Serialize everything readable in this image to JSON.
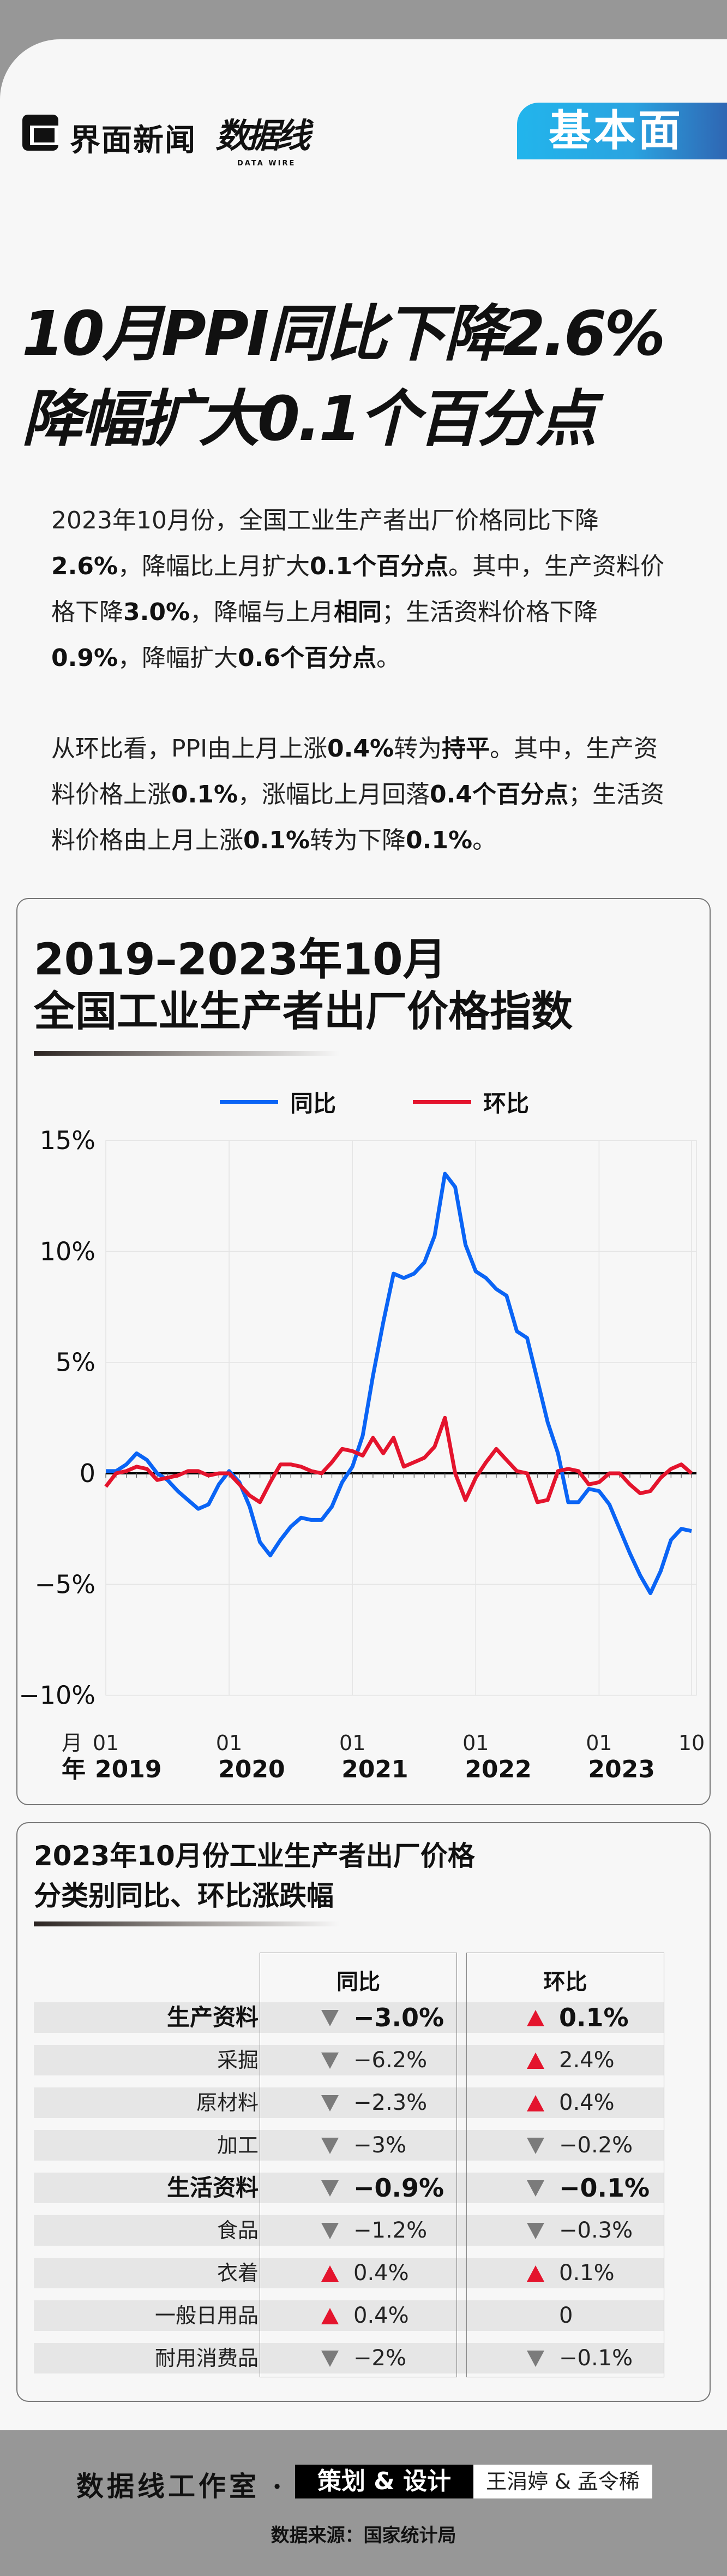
{
  "header": {
    "brand": "界面新闻",
    "sub_brand": "数据线",
    "sub_brand_en": "DATA WIRE",
    "tag": "基本面",
    "tag_colors": [
      "#22b5ec",
      "#2f66b3"
    ]
  },
  "headline": {
    "line1": "10月PPI同比下降2.6%",
    "line2": "降幅扩大0.1个百分点"
  },
  "paragraphs": [
    [
      {
        "t": "2023年10月份，全国工业生产者出厂价格同比下降",
        "b": false
      },
      {
        "t": "2.6%",
        "b": true
      },
      {
        "t": "，降幅比上月扩大",
        "b": false
      },
      {
        "t": "0.1个百分点",
        "b": true
      },
      {
        "t": "。其中，生产资料价格下降",
        "b": false
      },
      {
        "t": "3.0%",
        "b": true
      },
      {
        "t": "，降幅与上月",
        "b": false
      },
      {
        "t": "相同",
        "b": true
      },
      {
        "t": "；生活资料价格下降",
        "b": false
      },
      {
        "t": "0.9%",
        "b": true
      },
      {
        "t": "，降幅扩大",
        "b": false
      },
      {
        "t": "0.6个百分点",
        "b": true
      },
      {
        "t": "。",
        "b": false
      }
    ],
    [
      {
        "t": "从环比看，PPI由上月上涨",
        "b": false
      },
      {
        "t": "0.4%",
        "b": true
      },
      {
        "t": "转为",
        "b": false
      },
      {
        "t": "持平",
        "b": true
      },
      {
        "t": "。其中，生产资料价格上涨",
        "b": false
      },
      {
        "t": "0.1%",
        "b": true
      },
      {
        "t": "，涨幅比上月回落",
        "b": false
      },
      {
        "t": "0.4个百分点",
        "b": true
      },
      {
        "t": "；生活资料价格由上月上涨",
        "b": false
      },
      {
        "t": "0.1%",
        "b": true
      },
      {
        "t": "转为下降",
        "b": false
      },
      {
        "t": "0.1%",
        "b": true
      },
      {
        "t": "。",
        "b": false
      }
    ]
  ],
  "chart_data": {
    "type": "line",
    "title_line1": "2019–2023年10月",
    "title_line2": "全国工业生产者出厂价格指数",
    "x_start": "2019-01",
    "x_end": "2023-10",
    "x_month_label": "月",
    "x_year_label": "年",
    "x_ticks": [
      {
        "month": "01",
        "year": "2019",
        "date": "2019-01"
      },
      {
        "month": "01",
        "year": "2020",
        "date": "2020-01"
      },
      {
        "month": "01",
        "year": "2021",
        "date": "2021-01"
      },
      {
        "month": "01",
        "year": "2022",
        "date": "2022-01"
      },
      {
        "month": "01",
        "year": "2023",
        "date": "2023-01"
      },
      {
        "month": "10",
        "year": "",
        "date": "2023-10"
      }
    ],
    "ylim": [
      -12,
      15
    ],
    "y_ticks": [
      15,
      10,
      5,
      0,
      -5,
      -10
    ],
    "y_tick_labels": [
      "15%",
      "10%",
      "5%",
      "0",
      "−5%",
      "−10%"
    ],
    "grid": true,
    "legend_position": "top-center",
    "series": [
      {
        "name": "同比",
        "color": "#0a64f5",
        "values": [
          0.1,
          0.1,
          0.4,
          0.9,
          0.6,
          0.0,
          -0.3,
          -0.8,
          -1.2,
          -1.6,
          -1.4,
          -0.5,
          0.1,
          -0.4,
          -1.5,
          -3.1,
          -3.7,
          -3.0,
          -2.4,
          -2.0,
          -2.1,
          -2.1,
          -1.5,
          -0.4,
          0.3,
          1.7,
          4.4,
          6.8,
          9.0,
          8.8,
          9.0,
          9.5,
          10.7,
          13.5,
          12.9,
          10.3,
          9.1,
          8.8,
          8.3,
          8.0,
          6.4,
          6.1,
          4.2,
          2.3,
          0.9,
          -1.3,
          -1.3,
          -0.7,
          -0.8,
          -1.4,
          -2.5,
          -3.6,
          -4.6,
          -5.4,
          -4.4,
          -3.0,
          -2.5,
          -2.6
        ]
      },
      {
        "name": "环比",
        "color": "#e4142d",
        "values": [
          -0.6,
          0.0,
          0.1,
          0.3,
          0.2,
          -0.3,
          -0.2,
          -0.1,
          0.1,
          0.1,
          -0.1,
          0.0,
          0.0,
          -0.5,
          -1.0,
          -1.3,
          -0.4,
          0.4,
          0.4,
          0.3,
          0.1,
          0.0,
          0.5,
          1.1,
          1.0,
          0.8,
          1.6,
          0.9,
          1.6,
          0.3,
          0.5,
          0.7,
          1.2,
          2.5,
          0.0,
          -1.2,
          -0.2,
          0.5,
          1.1,
          0.6,
          0.1,
          0.0,
          -1.3,
          -1.2,
          0.1,
          0.2,
          0.1,
          -0.5,
          -0.4,
          0.0,
          0.0,
          -0.5,
          -0.9,
          -0.8,
          -0.2,
          0.2,
          0.4,
          0.0
        ]
      }
    ]
  },
  "table": {
    "title_line1": "2023年10月份工业生产者出厂价格",
    "title_line2": "分类别同比、环比涨跌幅",
    "col_yoy": "同比",
    "col_mom": "环比",
    "up_color": "#e4142d",
    "down_color": "#7b7b7b",
    "rows": [
      {
        "label": "生产资料",
        "bold": true,
        "yoy": "−3.0%",
        "yoy_dir": "down",
        "mom": "0.1%",
        "mom_dir": "up"
      },
      {
        "label": "采掘",
        "bold": false,
        "yoy": "−6.2%",
        "yoy_dir": "down",
        "mom": "2.4%",
        "mom_dir": "up"
      },
      {
        "label": "原材料",
        "bold": false,
        "yoy": "−2.3%",
        "yoy_dir": "down",
        "mom": "0.4%",
        "mom_dir": "up"
      },
      {
        "label": "加工",
        "bold": false,
        "yoy": "−3%",
        "yoy_dir": "down",
        "mom": "−0.2%",
        "mom_dir": "down"
      },
      {
        "label": "生活资料",
        "bold": true,
        "yoy": "−0.9%",
        "yoy_dir": "down",
        "mom": "−0.1%",
        "mom_dir": "down"
      },
      {
        "label": "食品",
        "bold": false,
        "yoy": "−1.2%",
        "yoy_dir": "down",
        "mom": "−0.3%",
        "mom_dir": "down"
      },
      {
        "label": "衣着",
        "bold": false,
        "yoy": "0.4%",
        "yoy_dir": "up",
        "mom": "0.1%",
        "mom_dir": "up"
      },
      {
        "label": "一般日用品",
        "bold": false,
        "yoy": "0.4%",
        "yoy_dir": "up",
        "mom": "0",
        "mom_dir": "none"
      },
      {
        "label": "耐用消费品",
        "bold": false,
        "yoy": "−2%",
        "yoy_dir": "down",
        "mom": "−0.1%",
        "mom_dir": "down"
      }
    ]
  },
  "footer": {
    "studio": "数据线工作室 ·",
    "role": "策划 & 设计",
    "names": "王涓婷 & 孟令稀",
    "source": "数据来源：国家统计局"
  }
}
